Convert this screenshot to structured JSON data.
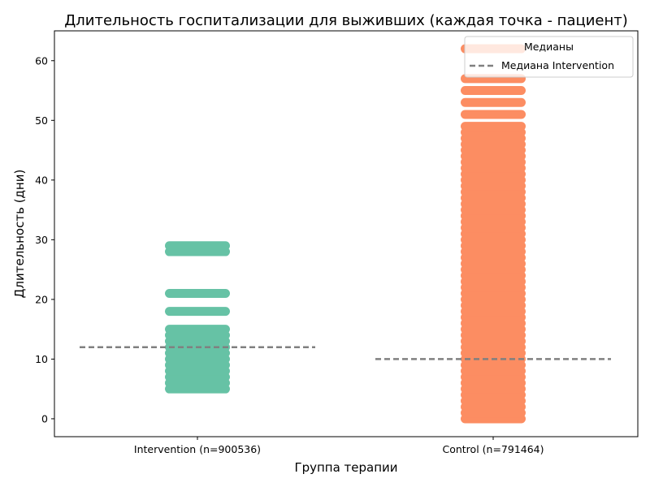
{
  "chart_data": {
    "type": "scatter",
    "title": "Длительность госпитализации для выживших (каждая точка - пациент)",
    "xlabel": "Группа терапии",
    "ylabel": "Длительность (дни)",
    "ylim": [
      -3,
      65
    ],
    "yticks": [
      0,
      10,
      20,
      30,
      40,
      50,
      60
    ],
    "categories": [
      "Intervention (n=900536)",
      "Control (n=791464)"
    ],
    "series": [
      {
        "name": "Intervention",
        "color": "#66c2a5",
        "y_values": [
          5,
          6,
          7,
          8,
          9,
          10,
          11,
          12,
          13,
          14,
          15,
          18,
          21,
          28,
          29
        ]
      },
      {
        "name": "Control",
        "color": "#fc8d62",
        "y_values": [
          0,
          1,
          2,
          3,
          4,
          5,
          6,
          7,
          8,
          9,
          10,
          11,
          12,
          13,
          14,
          15,
          16,
          17,
          18,
          19,
          20,
          21,
          22,
          23,
          24,
          25,
          26,
          27,
          28,
          29,
          30,
          31,
          32,
          33,
          34,
          35,
          36,
          37,
          38,
          39,
          40,
          41,
          42,
          43,
          44,
          45,
          46,
          47,
          48,
          49,
          51,
          53,
          55,
          57,
          62
        ]
      }
    ],
    "medians": [
      {
        "category": "Intervention (n=900536)",
        "value": 12
      },
      {
        "category": "Control (n=791464)",
        "value": 10
      }
    ],
    "median_style": {
      "color": "#808080",
      "dash": "dashed"
    },
    "legend": {
      "position": "top-right",
      "title": "Медианы",
      "entries": [
        {
          "label": "Медиана Intervention",
          "color": "#808080",
          "style": "dashed"
        }
      ]
    },
    "grid": false
  }
}
